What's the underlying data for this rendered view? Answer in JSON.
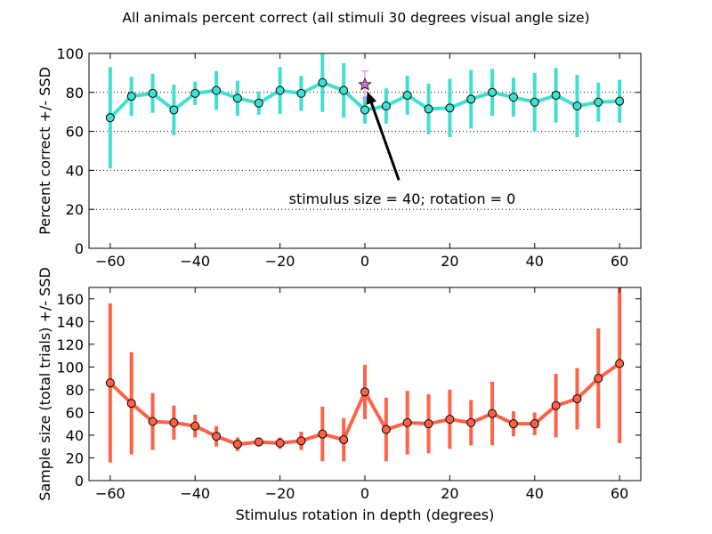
{
  "figure": {
    "suptitle": "All animals percent correct (all stimuli 30 degrees visual angle size)"
  },
  "chart_data": [
    {
      "type": "line",
      "title": "",
      "xlabel": "",
      "ylabel": "Percent correct +/- SSD",
      "xlim": [
        -65,
        65
      ],
      "ylim": [
        0,
        100
      ],
      "xticks": [
        -60,
        -40,
        -20,
        0,
        20,
        40,
        60
      ],
      "yticks": [
        0,
        20,
        40,
        60,
        80,
        100
      ],
      "grid": "horizontal dotted",
      "colors": {
        "series": "#40e0d0",
        "marker_face": "#40e0d0",
        "highlight_err": "#ee82ee",
        "highlight_marker": "#da70d6"
      },
      "series": [
        {
          "x": [
            -60,
            -55,
            -50,
            -45,
            -40,
            -35,
            -30,
            -25,
            -20,
            -15,
            -10,
            -5,
            0,
            5,
            10,
            15,
            20,
            25,
            30,
            35,
            40,
            45,
            50,
            55,
            60
          ],
          "values": [
            67,
            78,
            79.5,
            71,
            79.5,
            81,
            77,
            74.5,
            81,
            79.5,
            85,
            81,
            71,
            73,
            78.5,
            71.5,
            72,
            76.5,
            80,
            77.5,
            75,
            78.5,
            73,
            75,
            75.5
          ],
          "err": [
            26,
            10,
            10,
            13,
            6,
            10,
            9,
            6,
            12,
            9,
            15,
            14,
            7,
            9,
            10,
            13,
            15,
            15,
            12,
            10,
            15,
            14,
            16,
            10,
            11
          ]
        }
      ],
      "highlight_point": {
        "x": 0,
        "y": 84,
        "err": 7,
        "marker": "star"
      },
      "annotation": {
        "text": "stimulus size = 40; rotation = 0",
        "xy": [
          0,
          84
        ],
        "xytext": [
          8,
          35
        ]
      }
    },
    {
      "type": "line",
      "title": "",
      "xlabel": "Stimulus rotation in depth (degrees)",
      "ylabel": "Sample size (total trials) +/- SSD",
      "xlim": [
        -65,
        65
      ],
      "ylim": [
        0,
        170
      ],
      "xticks": [
        -60,
        -40,
        -20,
        0,
        20,
        40,
        60
      ],
      "yticks": [
        0,
        20,
        40,
        60,
        80,
        100,
        120,
        140,
        160
      ],
      "grid": "off",
      "colors": {
        "series": "#ff6347",
        "marker_face": "#ff6347"
      },
      "series": [
        {
          "x": [
            -60,
            -55,
            -50,
            -45,
            -40,
            -35,
            -30,
            -25,
            -20,
            -15,
            -10,
            -5,
            0,
            5,
            10,
            15,
            20,
            25,
            30,
            35,
            40,
            45,
            50,
            55,
            60
          ],
          "values": [
            86,
            68,
            52,
            51,
            48,
            39,
            32,
            34,
            33,
            35,
            41,
            36,
            78,
            45,
            51,
            50,
            54,
            51,
            59,
            50,
            50,
            66,
            72,
            90,
            103
          ],
          "err": [
            70,
            45,
            25,
            15,
            10,
            9,
            6,
            4,
            5,
            8,
            24,
            19,
            24,
            28,
            28,
            26,
            26,
            20,
            28,
            11,
            10,
            28,
            27,
            44,
            70
          ]
        }
      ]
    }
  ]
}
